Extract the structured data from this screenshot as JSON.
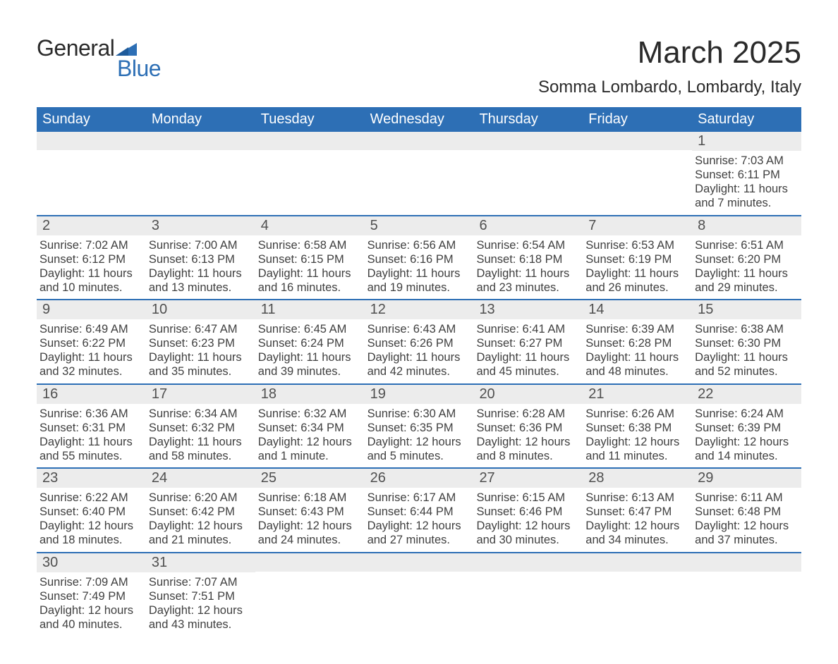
{
  "brand": {
    "part1": "General",
    "part2": "Blue",
    "accent_color": "#2d6fb5"
  },
  "title": {
    "month": "March 2025",
    "location": "Somma Lombardo, Lombardy, Italy"
  },
  "calendar": {
    "day_headers": [
      "Sunday",
      "Monday",
      "Tuesday",
      "Wednesday",
      "Thursday",
      "Friday",
      "Saturday"
    ],
    "header_bg": "#2d6fb5",
    "header_fg": "#ffffff",
    "daynum_bg": "#ececec",
    "border_color": "#2d6fb5",
    "weeks": [
      [
        {
          "day": "",
          "sunrise": "",
          "sunset": "",
          "daylight": ""
        },
        {
          "day": "",
          "sunrise": "",
          "sunset": "",
          "daylight": ""
        },
        {
          "day": "",
          "sunrise": "",
          "sunset": "",
          "daylight": ""
        },
        {
          "day": "",
          "sunrise": "",
          "sunset": "",
          "daylight": ""
        },
        {
          "day": "",
          "sunrise": "",
          "sunset": "",
          "daylight": ""
        },
        {
          "day": "",
          "sunrise": "",
          "sunset": "",
          "daylight": ""
        },
        {
          "day": "1",
          "sunrise": "Sunrise: 7:03 AM",
          "sunset": "Sunset: 6:11 PM",
          "daylight": "Daylight: 11 hours and 7 minutes."
        }
      ],
      [
        {
          "day": "2",
          "sunrise": "Sunrise: 7:02 AM",
          "sunset": "Sunset: 6:12 PM",
          "daylight": "Daylight: 11 hours and 10 minutes."
        },
        {
          "day": "3",
          "sunrise": "Sunrise: 7:00 AM",
          "sunset": "Sunset: 6:13 PM",
          "daylight": "Daylight: 11 hours and 13 minutes."
        },
        {
          "day": "4",
          "sunrise": "Sunrise: 6:58 AM",
          "sunset": "Sunset: 6:15 PM",
          "daylight": "Daylight: 11 hours and 16 minutes."
        },
        {
          "day": "5",
          "sunrise": "Sunrise: 6:56 AM",
          "sunset": "Sunset: 6:16 PM",
          "daylight": "Daylight: 11 hours and 19 minutes."
        },
        {
          "day": "6",
          "sunrise": "Sunrise: 6:54 AM",
          "sunset": "Sunset: 6:18 PM",
          "daylight": "Daylight: 11 hours and 23 minutes."
        },
        {
          "day": "7",
          "sunrise": "Sunrise: 6:53 AM",
          "sunset": "Sunset: 6:19 PM",
          "daylight": "Daylight: 11 hours and 26 minutes."
        },
        {
          "day": "8",
          "sunrise": "Sunrise: 6:51 AM",
          "sunset": "Sunset: 6:20 PM",
          "daylight": "Daylight: 11 hours and 29 minutes."
        }
      ],
      [
        {
          "day": "9",
          "sunrise": "Sunrise: 6:49 AM",
          "sunset": "Sunset: 6:22 PM",
          "daylight": "Daylight: 11 hours and 32 minutes."
        },
        {
          "day": "10",
          "sunrise": "Sunrise: 6:47 AM",
          "sunset": "Sunset: 6:23 PM",
          "daylight": "Daylight: 11 hours and 35 minutes."
        },
        {
          "day": "11",
          "sunrise": "Sunrise: 6:45 AM",
          "sunset": "Sunset: 6:24 PM",
          "daylight": "Daylight: 11 hours and 39 minutes."
        },
        {
          "day": "12",
          "sunrise": "Sunrise: 6:43 AM",
          "sunset": "Sunset: 6:26 PM",
          "daylight": "Daylight: 11 hours and 42 minutes."
        },
        {
          "day": "13",
          "sunrise": "Sunrise: 6:41 AM",
          "sunset": "Sunset: 6:27 PM",
          "daylight": "Daylight: 11 hours and 45 minutes."
        },
        {
          "day": "14",
          "sunrise": "Sunrise: 6:39 AM",
          "sunset": "Sunset: 6:28 PM",
          "daylight": "Daylight: 11 hours and 48 minutes."
        },
        {
          "day": "15",
          "sunrise": "Sunrise: 6:38 AM",
          "sunset": "Sunset: 6:30 PM",
          "daylight": "Daylight: 11 hours and 52 minutes."
        }
      ],
      [
        {
          "day": "16",
          "sunrise": "Sunrise: 6:36 AM",
          "sunset": "Sunset: 6:31 PM",
          "daylight": "Daylight: 11 hours and 55 minutes."
        },
        {
          "day": "17",
          "sunrise": "Sunrise: 6:34 AM",
          "sunset": "Sunset: 6:32 PM",
          "daylight": "Daylight: 11 hours and 58 minutes."
        },
        {
          "day": "18",
          "sunrise": "Sunrise: 6:32 AM",
          "sunset": "Sunset: 6:34 PM",
          "daylight": "Daylight: 12 hours and 1 minute."
        },
        {
          "day": "19",
          "sunrise": "Sunrise: 6:30 AM",
          "sunset": "Sunset: 6:35 PM",
          "daylight": "Daylight: 12 hours and 5 minutes."
        },
        {
          "day": "20",
          "sunrise": "Sunrise: 6:28 AM",
          "sunset": "Sunset: 6:36 PM",
          "daylight": "Daylight: 12 hours and 8 minutes."
        },
        {
          "day": "21",
          "sunrise": "Sunrise: 6:26 AM",
          "sunset": "Sunset: 6:38 PM",
          "daylight": "Daylight: 12 hours and 11 minutes."
        },
        {
          "day": "22",
          "sunrise": "Sunrise: 6:24 AM",
          "sunset": "Sunset: 6:39 PM",
          "daylight": "Daylight: 12 hours and 14 minutes."
        }
      ],
      [
        {
          "day": "23",
          "sunrise": "Sunrise: 6:22 AM",
          "sunset": "Sunset: 6:40 PM",
          "daylight": "Daylight: 12 hours and 18 minutes."
        },
        {
          "day": "24",
          "sunrise": "Sunrise: 6:20 AM",
          "sunset": "Sunset: 6:42 PM",
          "daylight": "Daylight: 12 hours and 21 minutes."
        },
        {
          "day": "25",
          "sunrise": "Sunrise: 6:18 AM",
          "sunset": "Sunset: 6:43 PM",
          "daylight": "Daylight: 12 hours and 24 minutes."
        },
        {
          "day": "26",
          "sunrise": "Sunrise: 6:17 AM",
          "sunset": "Sunset: 6:44 PM",
          "daylight": "Daylight: 12 hours and 27 minutes."
        },
        {
          "day": "27",
          "sunrise": "Sunrise: 6:15 AM",
          "sunset": "Sunset: 6:46 PM",
          "daylight": "Daylight: 12 hours and 30 minutes."
        },
        {
          "day": "28",
          "sunrise": "Sunrise: 6:13 AM",
          "sunset": "Sunset: 6:47 PM",
          "daylight": "Daylight: 12 hours and 34 minutes."
        },
        {
          "day": "29",
          "sunrise": "Sunrise: 6:11 AM",
          "sunset": "Sunset: 6:48 PM",
          "daylight": "Daylight: 12 hours and 37 minutes."
        }
      ],
      [
        {
          "day": "30",
          "sunrise": "Sunrise: 7:09 AM",
          "sunset": "Sunset: 7:49 PM",
          "daylight": "Daylight: 12 hours and 40 minutes."
        },
        {
          "day": "31",
          "sunrise": "Sunrise: 7:07 AM",
          "sunset": "Sunset: 7:51 PM",
          "daylight": "Daylight: 12 hours and 43 minutes."
        },
        {
          "day": "",
          "sunrise": "",
          "sunset": "",
          "daylight": ""
        },
        {
          "day": "",
          "sunrise": "",
          "sunset": "",
          "daylight": ""
        },
        {
          "day": "",
          "sunrise": "",
          "sunset": "",
          "daylight": ""
        },
        {
          "day": "",
          "sunrise": "",
          "sunset": "",
          "daylight": ""
        },
        {
          "day": "",
          "sunrise": "",
          "sunset": "",
          "daylight": ""
        }
      ]
    ]
  }
}
